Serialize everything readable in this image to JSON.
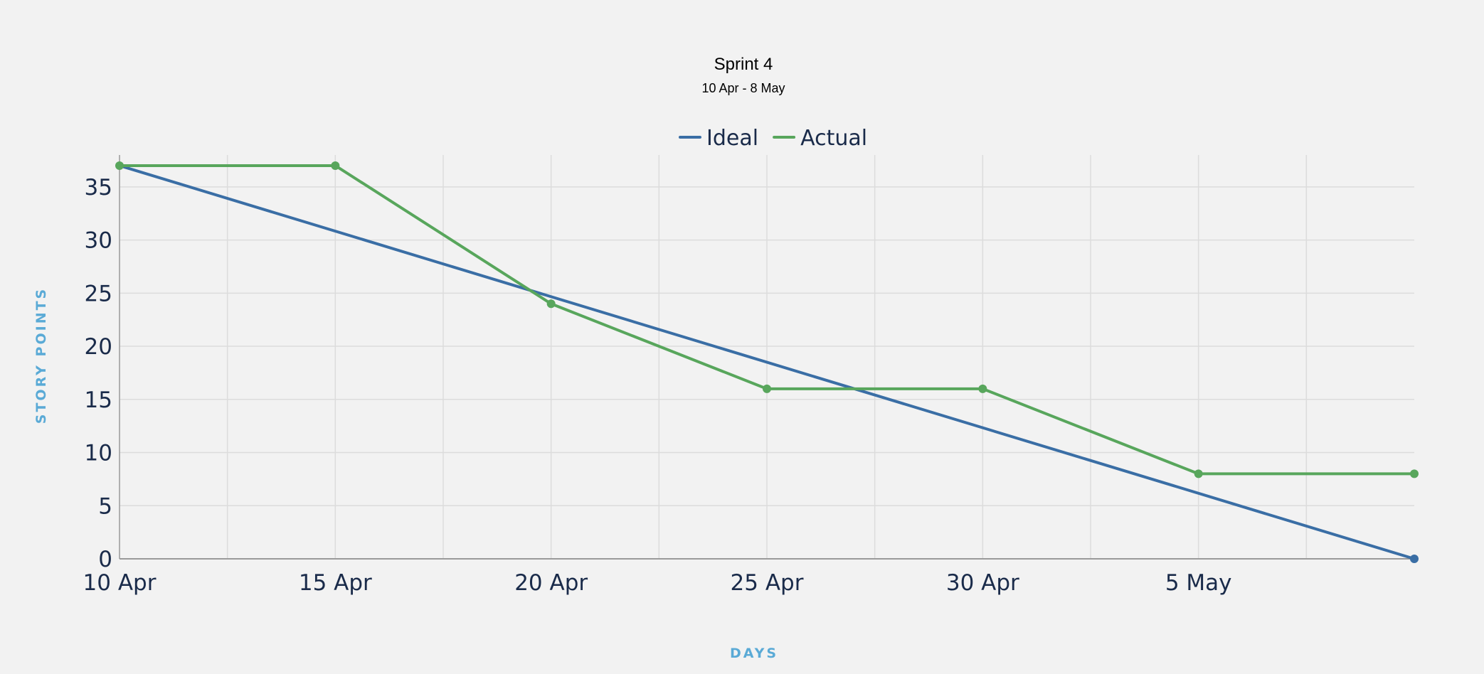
{
  "chart_data": {
    "type": "line",
    "title": "Sprint 4",
    "subtitle": "10 Apr - 8 May",
    "xlabel": "DAYS",
    "ylabel": "STORY POINTS",
    "x_tick_labels": [
      "10 Apr",
      "15 Apr",
      "20 Apr",
      "25 Apr",
      "30 Apr",
      "5 May"
    ],
    "x_ticks": [
      "2024-04-10",
      "2024-04-15",
      "2024-04-20",
      "2024-04-25",
      "2024-04-30",
      "2024-05-05"
    ],
    "x_range": [
      "2024-04-10",
      "2024-05-10"
    ],
    "ylim": [
      0,
      38
    ],
    "y_ticks": [
      0,
      5,
      10,
      15,
      20,
      25,
      30,
      35
    ],
    "grid": true,
    "legend_position": "top-center",
    "series": [
      {
        "name": "Ideal",
        "color": "#3a6ea5",
        "points": [
          {
            "x": "2024-04-10",
            "y": 37
          },
          {
            "x": "2024-05-10",
            "y": 0
          }
        ],
        "markers": [
          {
            "x": "2024-05-10",
            "y": 0
          }
        ]
      },
      {
        "name": "Actual",
        "color": "#58a65c",
        "points": [
          {
            "x": "2024-04-10",
            "y": 37
          },
          {
            "x": "2024-04-15",
            "y": 37
          },
          {
            "x": "2024-04-20",
            "y": 24
          },
          {
            "x": "2024-04-25",
            "y": 16
          },
          {
            "x": "2024-04-30",
            "y": 16
          },
          {
            "x": "2024-05-05",
            "y": 8
          },
          {
            "x": "2024-05-10",
            "y": 8
          }
        ],
        "markers": [
          {
            "x": "2024-04-10",
            "y": 37
          },
          {
            "x": "2024-04-15",
            "y": 37
          },
          {
            "x": "2024-04-20",
            "y": 24
          },
          {
            "x": "2024-04-25",
            "y": 16
          },
          {
            "x": "2024-04-30",
            "y": 16
          },
          {
            "x": "2024-05-05",
            "y": 8
          },
          {
            "x": "2024-05-10",
            "y": 8
          }
        ]
      }
    ]
  },
  "colors": {
    "background": "#f2f2f2",
    "grid": "#dcdcdc",
    "axis": "#9a9a9a",
    "tick_text": "#1a2b4a",
    "axis_title": "#5aaad6"
  }
}
